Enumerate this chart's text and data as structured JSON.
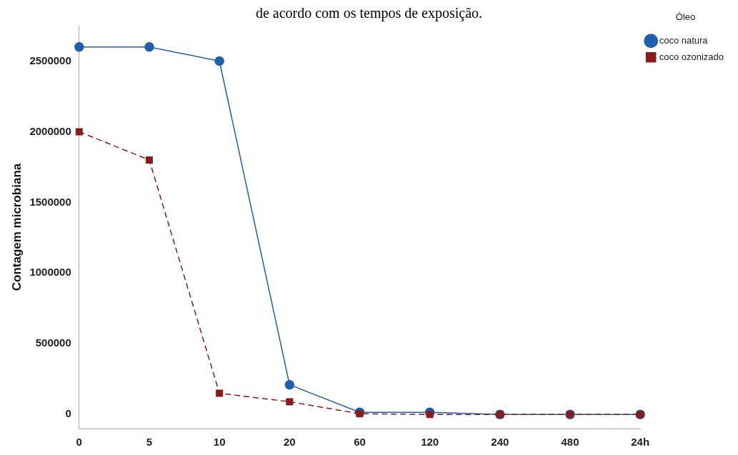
{
  "chart_data": {
    "type": "line",
    "title": "de acordo com os tempos de exposição.",
    "ylabel": "Contagem microbiana",
    "legend_title": "Óleo",
    "categories": [
      "0",
      "5",
      "10",
      "20",
      "60",
      "120",
      "240",
      "480",
      "24h"
    ],
    "series": [
      {
        "name": "coco natura",
        "color": "#1f5fad",
        "marker": "circle",
        "line_style": "solid",
        "values": [
          2600000,
          2600000,
          2500000,
          210000,
          15000,
          15000,
          0,
          0,
          0
        ]
      },
      {
        "name": "coco ozonizado",
        "color": "#8b1a1a",
        "marker": "square",
        "line_style": "dashed",
        "values": [
          2000000,
          1800000,
          150000,
          90000,
          5000,
          0,
          0,
          0,
          0
        ]
      }
    ],
    "ylim": [
      -100000,
      2750000
    ],
    "yticks": [
      0,
      500000,
      1000000,
      1500000,
      2000000,
      2500000
    ],
    "grid": false,
    "legend": "top right"
  }
}
